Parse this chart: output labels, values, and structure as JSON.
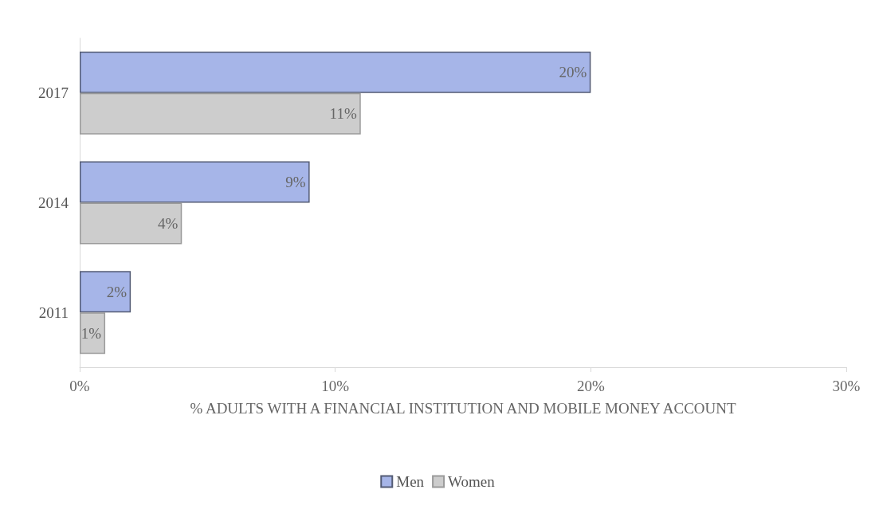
{
  "chart_data": {
    "type": "bar",
    "orientation": "horizontal",
    "xlabel": "% ADULTS WITH A FINANCIAL INSTITUTION AND MOBILE MONEY ACCOUNT",
    "categories": [
      "2017",
      "2014",
      "2011"
    ],
    "series": [
      {
        "name": "Men",
        "color": "#a6b5e8",
        "values": [
          20,
          9,
          2
        ],
        "value_labels": [
          "20%",
          "9%",
          "2%"
        ]
      },
      {
        "name": "Women",
        "color": "#cdcdcd",
        "values": [
          11,
          4,
          1
        ],
        "value_labels": [
          "11%",
          "4%",
          "1%"
        ]
      }
    ],
    "xlim": [
      0,
      30
    ],
    "xticks": [
      {
        "value": 0,
        "label": "0%"
      },
      {
        "value": 10,
        "label": "10%"
      },
      {
        "value": 20,
        "label": "20%"
      },
      {
        "value": 30,
        "label": "30%"
      }
    ],
    "grid": false,
    "legend": "bottom"
  }
}
